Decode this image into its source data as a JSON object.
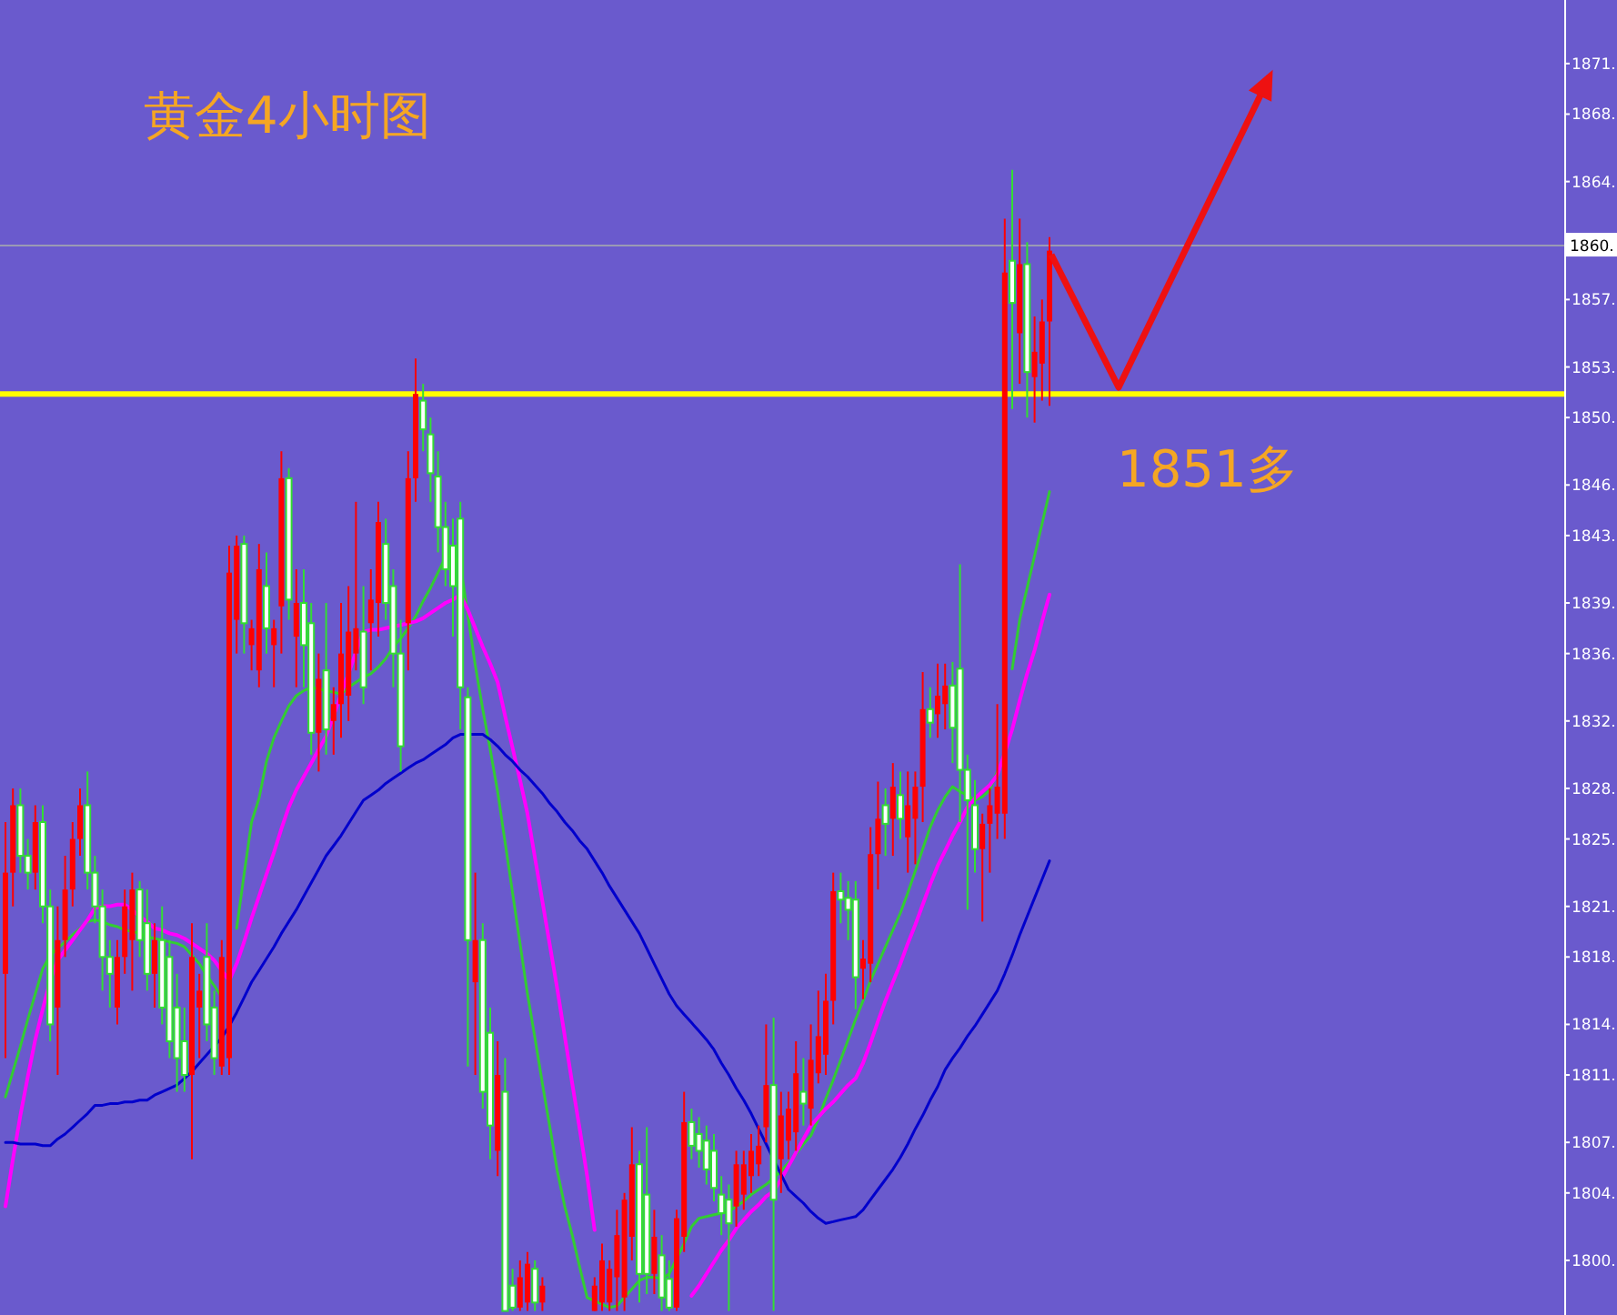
{
  "chart_data": {
    "type": "candlestick",
    "title": "黄金4小时图",
    "categories": [
      null,
      null,
      null,
      null,
      null,
      null,
      null,
      null,
      null,
      null,
      null,
      null,
      null,
      null,
      null,
      null,
      null,
      null,
      null,
      null,
      null,
      null,
      null,
      null,
      null,
      null,
      null,
      null,
      null,
      null,
      null,
      null,
      null,
      null,
      null,
      null,
      null,
      null,
      null,
      null,
      null,
      null,
      null,
      null,
      null,
      null,
      null,
      null,
      null,
      null,
      null,
      null,
      null,
      null,
      null,
      null,
      null,
      null,
      null,
      null,
      null,
      null,
      null,
      null,
      null,
      null,
      null,
      null,
      null,
      null,
      null,
      null,
      null,
      null,
      null,
      null,
      null,
      null,
      null,
      null,
      null,
      null,
      null,
      null,
      null,
      null,
      null,
      null,
      null,
      null,
      null,
      null,
      null,
      null,
      null,
      null,
      null,
      null,
      null,
      null,
      null,
      null,
      null,
      null,
      null,
      null,
      null,
      null,
      null,
      null,
      null,
      null,
      null,
      null,
      null,
      null,
      null,
      null,
      null,
      null,
      null,
      null,
      null,
      null,
      null,
      null,
      null,
      null,
      null,
      null,
      null,
      null,
      null,
      null,
      null,
      null,
      null,
      null,
      null,
      null,
      null
    ],
    "colors": [
      "#ff0000",
      "#ff0000",
      "#33dd33",
      "#33dd33",
      "#ff0000",
      "#33dd33",
      "#33dd33",
      "#ff0000",
      "#ff0000",
      "#ff0000",
      "#ff0000",
      "#33dd33",
      "#33dd33",
      "#33dd33",
      "#33dd33",
      "#ff0000",
      "#ff0000",
      "#ff0000",
      "#33dd33",
      "#33dd33",
      "#ff0000",
      "#33dd33",
      "#33dd33",
      "#33dd33",
      "#33dd33",
      "#ff0000",
      "#ff0000",
      "#33dd33",
      "#33dd33",
      "#ff0000",
      "#ff0000",
      "#ff0000",
      "#33dd33",
      "#ff0000",
      "#ff0000",
      "#33dd33",
      "#ff0000",
      "#ff0000",
      "#33dd33",
      "#ff0000",
      "#33dd33",
      "#33dd33",
      "#ff0000",
      "#33dd33",
      "#ff0000",
      "#ff0000",
      "#ff0000",
      "#ff0000",
      "#33dd33",
      "#ff0000",
      "#ff0000",
      "#33dd33",
      "#33dd33",
      "#33dd33",
      "#ff0000",
      "#ff0000",
      "#33dd33",
      "#33dd33",
      "#33dd33",
      "#33dd33",
      "#33dd33",
      "#33dd33",
      "#33dd33",
      "#ff0000",
      "#33dd33",
      "#33dd33",
      "#ff0000",
      "#33dd33",
      "#33dd33",
      "#ff0000",
      "#ff0000",
      "#33dd33",
      "#ff0000",
      null,
      null,
      null,
      null,
      null,
      null,
      "#ff0000",
      "#ff0000",
      "#ff0000",
      "#ff0000",
      "#ff0000",
      "#ff0000",
      "#33dd33",
      "#33dd33",
      "#ff0000",
      "#33dd33",
      "#33dd33",
      "#ff0000",
      "#ff0000",
      "#33dd33",
      "#33dd33",
      "#33dd33",
      "#33dd33",
      "#33dd33",
      "#33dd33",
      "#ff0000",
      "#ff0000",
      "#ff0000",
      "#ff0000",
      "#ff0000",
      "#33dd33",
      "#ff0000",
      "#ff0000",
      "#ff0000",
      "#33dd33",
      "#ff0000",
      "#ff0000",
      "#ff0000",
      "#ff0000",
      "#33dd33",
      "#33dd33",
      "#33dd33",
      "#ff0000",
      "#ff0000",
      "#ff0000",
      "#33dd33",
      "#ff0000",
      "#33dd33",
      "#ff0000",
      "#ff0000",
      "#ff0000",
      "#33dd33",
      "#ff0000",
      "#ff0000",
      "#33dd33",
      "#33dd33",
      "#33dd33",
      "#33dd33",
      "#ff0000",
      "#ff0000",
      "#ff0000",
      "#ff0000",
      "#33dd33",
      "#ff0000",
      "#33dd33",
      "#ff0000",
      "#ff0000",
      "#ff0000"
    ],
    "ohlc": [
      [
        1817,
        1826,
        1812,
        1823
      ],
      [
        1823,
        1828,
        1821,
        1827
      ],
      [
        1827,
        1828,
        1823,
        1824
      ],
      [
        1824,
        1825,
        1822,
        1823
      ],
      [
        1823,
        1827,
        1822,
        1826
      ],
      [
        1826,
        1827,
        1820,
        1821
      ],
      [
        1821,
        1822,
        1813,
        1814
      ],
      [
        1815,
        1821,
        1811,
        1819
      ],
      [
        1819,
        1824,
        1818,
        1822
      ],
      [
        1822,
        1826,
        1821,
        1825
      ],
      [
        1825,
        1828,
        1824,
        1827
      ],
      [
        1827,
        1829,
        1822,
        1823
      ],
      [
        1823,
        1824,
        1820,
        1821
      ],
      [
        1821,
        1822,
        1816,
        1818
      ],
      [
        1818,
        1819,
        1815,
        1817
      ],
      [
        1815,
        1819,
        1814,
        1818
      ],
      [
        1818,
        1822,
        1817,
        1821
      ],
      [
        1819,
        1823,
        1816,
        1822
      ],
      [
        1822,
        1822.5,
        1818,
        1819
      ],
      [
        1820,
        1822,
        1816,
        1817
      ],
      [
        1817,
        1820,
        1815,
        1819
      ],
      [
        1819,
        1821,
        1814,
        1815
      ],
      [
        1818,
        1819,
        1812,
        1813
      ],
      [
        1815,
        1817,
        1810,
        1812
      ],
      [
        1813,
        1815,
        1810,
        1811
      ],
      [
        1811,
        1820,
        1806,
        1818
      ],
      [
        1815,
        1817,
        1812,
        1816
      ],
      [
        1818,
        1820,
        1813,
        1814
      ],
      [
        1815,
        1816,
        1811,
        1812
      ],
      [
        1811.5,
        1819,
        1811,
        1818
      ],
      [
        1812,
        1842.4,
        1811,
        1840.8
      ],
      [
        1838,
        1843,
        1836,
        1842.4
      ],
      [
        1842.5,
        1843,
        1836,
        1837.8
      ],
      [
        1836.5,
        1838,
        1835,
        1837.5
      ],
      [
        1835,
        1842.5,
        1834,
        1841
      ],
      [
        1840,
        1842,
        1836,
        1837.5
      ],
      [
        1836.5,
        1838,
        1834,
        1837.5
      ],
      [
        1838.8,
        1848,
        1836,
        1846.4
      ],
      [
        1846.4,
        1847,
        1838,
        1839.2
      ],
      [
        1837,
        1841,
        1834,
        1839
      ],
      [
        1839,
        1841,
        1834,
        1836.5
      ],
      [
        1837.8,
        1839,
        1830,
        1831.3
      ],
      [
        1831.3,
        1836,
        1829,
        1834.5
      ],
      [
        1835,
        1839,
        1830,
        1831.5
      ],
      [
        1832,
        1834,
        1830,
        1833
      ],
      [
        1833,
        1839,
        1831,
        1836
      ],
      [
        1833.5,
        1840,
        1832,
        1837.3
      ],
      [
        1836,
        1845,
        1835,
        1837.5
      ],
      [
        1837.3,
        1840,
        1833,
        1834
      ],
      [
        1837.8,
        1841,
        1835,
        1839.2
      ],
      [
        1839,
        1845,
        1837,
        1843.8
      ],
      [
        1842.5,
        1844,
        1838,
        1839
      ],
      [
        1840,
        1841,
        1834,
        1836
      ],
      [
        1836,
        1838,
        1829,
        1830.5
      ],
      [
        1837.8,
        1848,
        1835,
        1846.4
      ],
      [
        1846.4,
        1853.5,
        1845,
        1851.4
      ],
      [
        1851,
        1852,
        1848,
        1849.3
      ],
      [
        1849,
        1850,
        1845,
        1846.7
      ],
      [
        1846.5,
        1848,
        1842,
        1843.5
      ],
      [
        1843.5,
        1845,
        1840,
        1841
      ],
      [
        1842.4,
        1844,
        1837,
        1840
      ],
      [
        1844,
        1845,
        1831.5,
        1834
      ],
      [
        1833.4,
        1834,
        1811.5,
        1819
      ],
      [
        1816.5,
        1823,
        1811,
        1819
      ],
      [
        1819,
        1820,
        1809,
        1810
      ],
      [
        1813.5,
        1815,
        1806,
        1808
      ],
      [
        1806.5,
        1813,
        1805,
        1811
      ],
      [
        1810,
        1812,
        1797,
        1797
      ],
      [
        1798.5,
        1799.5,
        1797,
        1797.2
      ],
      [
        1797.2,
        1800,
        1797,
        1799
      ],
      [
        1797.5,
        1800.5,
        1797,
        1799.8
      ],
      [
        1799.5,
        1800,
        1797,
        1797.5
      ],
      [
        1797.5,
        1799,
        1797,
        1798.5
      ],
      null,
      null,
      null,
      null,
      null,
      null,
      [
        1797,
        1799,
        1797,
        1798.5
      ],
      [
        1797.5,
        1801,
        1797,
        1800
      ],
      [
        1797.5,
        1800,
        1797,
        1799.5
      ],
      [
        1799,
        1803,
        1797,
        1801.5
      ],
      [
        1797.8,
        1804,
        1797,
        1803.6
      ],
      [
        1801.4,
        1807.9,
        1800,
        1805.7
      ],
      [
        1805.7,
        1806.5,
        1797.5,
        1799.2
      ],
      [
        1803.9,
        1807.9,
        1798,
        1799.2
      ],
      [
        1799.2,
        1803,
        1798,
        1801.4
      ],
      [
        1800.3,
        1801.5,
        1797,
        1797.8
      ],
      [
        1798.9,
        1800,
        1797,
        1797.2
      ],
      [
        1797.2,
        1803,
        1797,
        1802.5
      ],
      [
        1801.4,
        1810,
        1800.5,
        1808.2
      ],
      [
        1808.2,
        1809,
        1806,
        1806.8
      ],
      [
        1807.5,
        1808.5,
        1805.5,
        1806.5
      ],
      [
        1807.1,
        1808,
        1804.5,
        1805.4
      ],
      [
        1806.5,
        1807.5,
        1803.5,
        1804.3
      ],
      [
        1803.9,
        1805,
        1801.5,
        1802.8
      ],
      [
        1803.6,
        1804.5,
        1797,
        1802.2
      ],
      [
        1803.2,
        1806.5,
        1802,
        1805.7
      ],
      [
        1803.9,
        1806.5,
        1803,
        1805.7
      ],
      [
        1805,
        1807.5,
        1804,
        1806.5
      ],
      [
        1805.7,
        1808,
        1805,
        1806.8
      ],
      [
        1807.9,
        1814,
        1807,
        1810.4
      ],
      [
        1810.4,
        1814.4,
        1797,
        1803.6
      ],
      [
        1806,
        1810,
        1804,
        1808.6
      ],
      [
        1807.1,
        1810,
        1806,
        1809
      ],
      [
        1807.6,
        1813,
        1806.5,
        1811.1
      ],
      [
        1810,
        1812,
        1808,
        1809.3
      ],
      [
        1809,
        1814,
        1808,
        1811.9
      ],
      [
        1811.1,
        1816,
        1810.5,
        1813.3
      ],
      [
        1812.2,
        1817,
        1811,
        1815.4
      ],
      [
        1815.4,
        1823,
        1814,
        1821.9
      ],
      [
        1821.9,
        1823,
        1820,
        1821.4
      ],
      [
        1821.5,
        1822.5,
        1819,
        1820.8
      ],
      [
        1821.4,
        1822.5,
        1814.9,
        1816.8
      ],
      [
        1817.3,
        1819,
        1815.5,
        1817.9
      ],
      [
        1817.6,
        1825.7,
        1816.5,
        1824.1
      ],
      [
        1824.1,
        1828.4,
        1822,
        1826.2
      ],
      [
        1827,
        1828,
        1824,
        1825.9
      ],
      [
        1826.2,
        1829.5,
        1824,
        1828.1
      ],
      [
        1827.6,
        1829,
        1825,
        1826.2
      ],
      [
        1825.1,
        1829,
        1823,
        1827
      ],
      [
        1826.2,
        1829,
        1823.5,
        1828.1
      ],
      [
        1828.1,
        1834.9,
        1826,
        1832.7
      ],
      [
        1832.7,
        1834,
        1831,
        1831.9
      ],
      [
        1832.4,
        1835.4,
        1831,
        1833.5
      ],
      [
        1833,
        1835.4,
        1831.5,
        1834.1
      ],
      [
        1834.1,
        1835.5,
        1829.5,
        1831.6
      ],
      [
        1835.1,
        1841.3,
        1826,
        1829.1
      ],
      [
        1829.1,
        1830,
        1820.8,
        1827.3
      ],
      [
        1827,
        1828.5,
        1823,
        1824.4
      ],
      [
        1824.4,
        1826.5,
        1820.1,
        1825.9
      ],
      [
        1825.9,
        1828,
        1823,
        1827
      ],
      [
        1826.5,
        1833,
        1825,
        1828.1
      ],
      [
        1826.5,
        1861.8,
        1825,
        1858.6
      ],
      [
        1859.3,
        1864.7,
        1850.5,
        1856.8
      ],
      [
        1855,
        1861.8,
        1852,
        1859.1
      ],
      [
        1859.1,
        1860.4,
        1850,
        1852.7
      ],
      [
        1852.4,
        1856,
        1849.7,
        1853.9
      ],
      [
        1853.2,
        1857,
        1851,
        1855.7
      ],
      [
        1855.7,
        1860.7,
        1850.7,
        1859.9
      ]
    ],
    "series": [
      {
        "type": "line",
        "color": "#33cc33",
        "values": [
          1809.7,
          1811.2,
          1812.7,
          1814.3,
          1815.8,
          1817.3,
          1818.1,
          1818.5,
          1818.9,
          1819.3,
          1819.7,
          1820.1,
          1820.2,
          1820.1,
          1819.9,
          1819.8,
          1819.6,
          1819.5,
          1819.4,
          1819.2,
          1819.1,
          1819.0,
          1818.9,
          1818.8,
          1818.6,
          1818.1,
          1817.6,
          1816.9,
          1816.3,
          1815.6,
          null,
          1819.7,
          1822.9,
          1826.0,
          1827.4,
          1829.6,
          1831.0,
          1832.0,
          1832.9,
          1833.5,
          1833.8,
          1834.0,
          1833.9,
          1833.8,
          1833.7,
          1833.6,
          1834.0,
          1834.3,
          1834.6,
          1834.8,
          1835.2,
          1835.7,
          1836.4,
          1836.9,
          1837.5,
          1838.2,
          1839.1,
          1839.9,
          1840.8,
          1841.7,
          1841.8,
          1841.3,
          1838.3,
          1835.3,
          1832.7,
          1830.3,
          1827.8,
          1824.8,
          1821.8,
          1818.8,
          1815.8,
          1813.2,
          1810.5,
          1807.9,
          1805.3,
          1803.2,
          1801.5,
          1799.6,
          1797.8,
          1797.6,
          1797.4,
          1797.2,
          1797.3,
          1797.8,
          1798.3,
          1798.8,
          1799.0,
          1799.0,
          1798.9,
          1799.2,
          1800.1,
          1801.0,
          1802.0,
          1802.5,
          1802.6,
          1802.7,
          1802.8,
          1802.9,
          1803.2,
          1803.5,
          1803.9,
          1804.2,
          1804.5,
          1804.9,
          1805.3,
          1805.8,
          1806.3,
          1806.9,
          1807.4,
          1808.4,
          1809.6,
          1810.7,
          1811.9,
          1813.1,
          1814.3,
          1815.4,
          1816.6,
          1817.6,
          1818.6,
          1819.6,
          1820.6,
          1821.8,
          1823.1,
          1824.4,
          1825.7,
          1826.7,
          1827.5,
          1828.1,
          1827.8,
          1827.6,
          1827.3,
          1827.5,
          1827.9,
          1829.0,
          null,
          1835.1,
          1838.0,
          1839.9,
          1841.8,
          1843.7,
          1845.6
        ]
      },
      {
        "type": "line",
        "color": "#ff00ff",
        "values": [
          1803.2,
          1806.0,
          1808.6,
          1810.9,
          1813.1,
          1814.9,
          1816.6,
          1817.8,
          1818.4,
          1819.0,
          1819.6,
          1820.2,
          1820.9,
          1821.0,
          1821.0,
          1821.1,
          1821.1,
          1820.8,
          1820.4,
          1820.1,
          1819.7,
          1819.6,
          1819.4,
          1819.3,
          1819.1,
          1818.8,
          1818.5,
          1818.2,
          1817.8,
          1817.2,
          1816.6,
          1817.6,
          1818.9,
          1820.3,
          1821.6,
          1822.9,
          1824.2,
          1825.6,
          1826.9,
          1827.9,
          1828.7,
          1829.5,
          1830.3,
          1831.1,
          1832.3,
          1833.6,
          1834.8,
          1836.1,
          1837.3,
          1837.4,
          1837.4,
          1837.5,
          1837.6,
          1837.7,
          1837.8,
          1837.9,
          1838.1,
          1838.4,
          1838.7,
          1839.0,
          1839.2,
          1839.5,
          1838.6,
          1837.5,
          1836.4,
          1835.4,
          1834.3,
          1832.3,
          1830.4,
          1828.5,
          1826.5,
          1823.9,
          1821.3,
          1818.7,
          1816.1,
          1813.3,
          1810.5,
          1807.8,
          1805.0,
          1801.8,
          null,
          null,
          null,
          null,
          null,
          null,
          null,
          null,
          null,
          null,
          null,
          null,
          1797.9,
          1798.5,
          1799.2,
          1799.9,
          1800.6,
          1801.2,
          1801.9,
          1802.4,
          1802.9,
          1803.3,
          1803.8,
          1804.1,
          1804.8,
          1805.6,
          1806.4,
          1807.2,
          1808.0,
          1808.5,
          1809.0,
          1809.4,
          1809.9,
          1810.4,
          1810.8,
          1811.7,
          1812.9,
          1814.2,
          1815.4,
          1816.5,
          1817.6,
          1818.8,
          1819.9,
          1821.1,
          1822.3,
          1823.4,
          1824.3,
          1825.2,
          1826.0,
          1826.9,
          1827.4,
          1827.8,
          1828.2,
          1828.8,
          1830.1,
          1831.5,
          1833.2,
          1834.8,
          1836.2,
          1837.9,
          1839.5
        ]
      },
      {
        "type": "line",
        "color": "#0000cc",
        "values": [
          1807.0,
          1807.0,
          1806.9,
          1806.9,
          1806.9,
          1806.8,
          1806.8,
          1807.2,
          1807.5,
          1807.9,
          1808.3,
          1808.7,
          1809.2,
          1809.2,
          1809.3,
          1809.3,
          1809.4,
          1809.4,
          1809.5,
          1809.5,
          1809.8,
          1810.0,
          1810.2,
          1810.4,
          1810.8,
          1811.2,
          1811.7,
          1812.2,
          1812.7,
          1813.2,
          1813.9,
          1814.7,
          1815.6,
          1816.5,
          1817.2,
          1817.9,
          1818.6,
          1819.4,
          1820.1,
          1820.8,
          1821.6,
          1822.4,
          1823.2,
          1824.0,
          1824.6,
          1825.2,
          1825.9,
          1826.6,
          1827.3,
          1827.6,
          1827.9,
          1828.3,
          1828.6,
          1828.9,
          1829.2,
          1829.5,
          1829.7,
          1830.0,
          1830.3,
          1830.6,
          1831.0,
          1831.2,
          1831.2,
          1831.2,
          1831.2,
          1830.9,
          1830.5,
          1830.0,
          1829.6,
          1829.1,
          1828.7,
          1828.2,
          1827.7,
          1827.1,
          1826.6,
          1826.0,
          1825.5,
          1824.9,
          1824.4,
          1823.7,
          1823.0,
          1822.2,
          1821.5,
          1820.8,
          1820.1,
          1819.4,
          1818.5,
          1817.6,
          1816.7,
          1815.8,
          1815.1,
          1814.6,
          1814.1,
          1813.6,
          1813.1,
          1812.5,
          1811.7,
          1811.0,
          1810.2,
          1809.5,
          1808.7,
          1807.8,
          1806.9,
          1806.0,
          1805.1,
          1804.2,
          1803.8,
          1803.4,
          1802.9,
          1802.5,
          1802.2,
          1802.3,
          1802.4,
          1802.5,
          1802.6,
          1803.0,
          1803.6,
          1804.2,
          1804.8,
          1805.4,
          1806.1,
          1806.9,
          1807.8,
          1808.6,
          1809.5,
          1810.3,
          1811.3,
          1812.0,
          1812.6,
          1813.3,
          1813.9,
          1814.6,
          1815.3,
          1816.0,
          1817.0,
          1818.1,
          1819.3,
          1820.4,
          1821.5,
          1822.6,
          1823.7
        ]
      }
    ],
    "ylim": [
      1796.76,
      1874.77
    ],
    "yticks": [
      {
        "value": 1800,
        "label": "1800."
      },
      {
        "value": 1804,
        "label": "1804."
      },
      {
        "value": 1807,
        "label": "1807."
      },
      {
        "value": 1811,
        "label": "1811."
      },
      {
        "value": 1814,
        "label": "1814."
      },
      {
        "value": 1818,
        "label": "1818."
      },
      {
        "value": 1821,
        "label": "1821."
      },
      {
        "value": 1825,
        "label": "1825."
      },
      {
        "value": 1828,
        "label": "1828."
      },
      {
        "value": 1832,
        "label": "1832."
      },
      {
        "value": 1836,
        "label": "1836."
      },
      {
        "value": 1839,
        "label": "1839."
      },
      {
        "value": 1843,
        "label": "1843."
      },
      {
        "value": 1846,
        "label": "1846."
      },
      {
        "value": 1850,
        "label": "1850."
      },
      {
        "value": 1853,
        "label": "1853."
      },
      {
        "value": 1857,
        "label": "1857."
      },
      {
        "value": 1864,
        "label": "1864."
      },
      {
        "value": 1868,
        "label": "1868."
      },
      {
        "value": 1871,
        "label": "1871."
      }
    ],
    "ref_lines": [
      {
        "axis": "y",
        "value": 1851.4,
        "label": "1851多",
        "color": "#ffff00"
      },
      {
        "axis": "y",
        "value": 1860.2,
        "label": "1860.",
        "color": "#9a9ab4"
      }
    ],
    "tick_labels": "y"
  }
}
